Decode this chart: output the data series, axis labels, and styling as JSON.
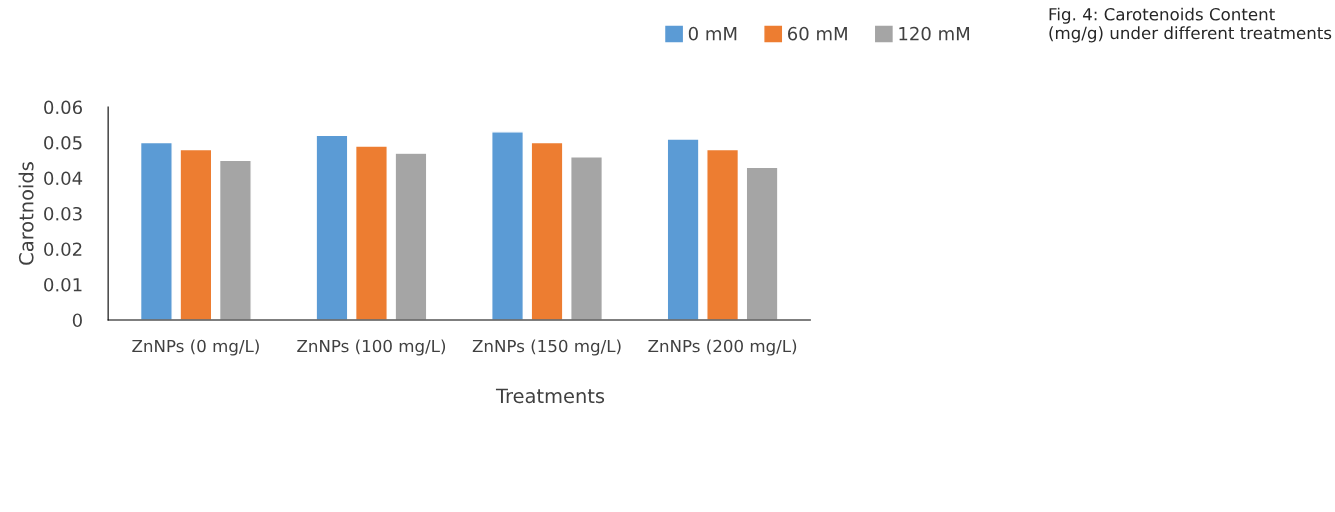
{
  "chart_data": {
    "type": "bar",
    "xlabel": "Treatments",
    "ylabel": "Carotnoids",
    "categories": [
      "ZnNPs (0 mg/L)",
      "ZnNPs (100 mg/L)",
      "ZnNPs (150 mg/L)",
      "ZnNPs (200 mg/L)"
    ],
    "series": [
      {
        "name": "0 mM",
        "color": "#5b9bd5",
        "values": [
          0.05,
          0.052,
          0.053,
          0.051
        ]
      },
      {
        "name": "60 mM",
        "color": "#ed7d31",
        "values": [
          0.048,
          0.049,
          0.05,
          0.048
        ]
      },
      {
        "name": "120 mM",
        "color": "#a5a5a5",
        "values": [
          0.045,
          0.047,
          0.046,
          0.043
        ]
      }
    ],
    "ylim": [
      0,
      0.06
    ],
    "yticks": [
      0,
      0.01,
      0.02,
      0.03,
      0.04,
      0.05,
      0.06
    ],
    "grid": false,
    "legend": "top",
    "annotations": [
      "Fig. 4: Carotenoids Content (mg/g) under different treatments"
    ]
  }
}
